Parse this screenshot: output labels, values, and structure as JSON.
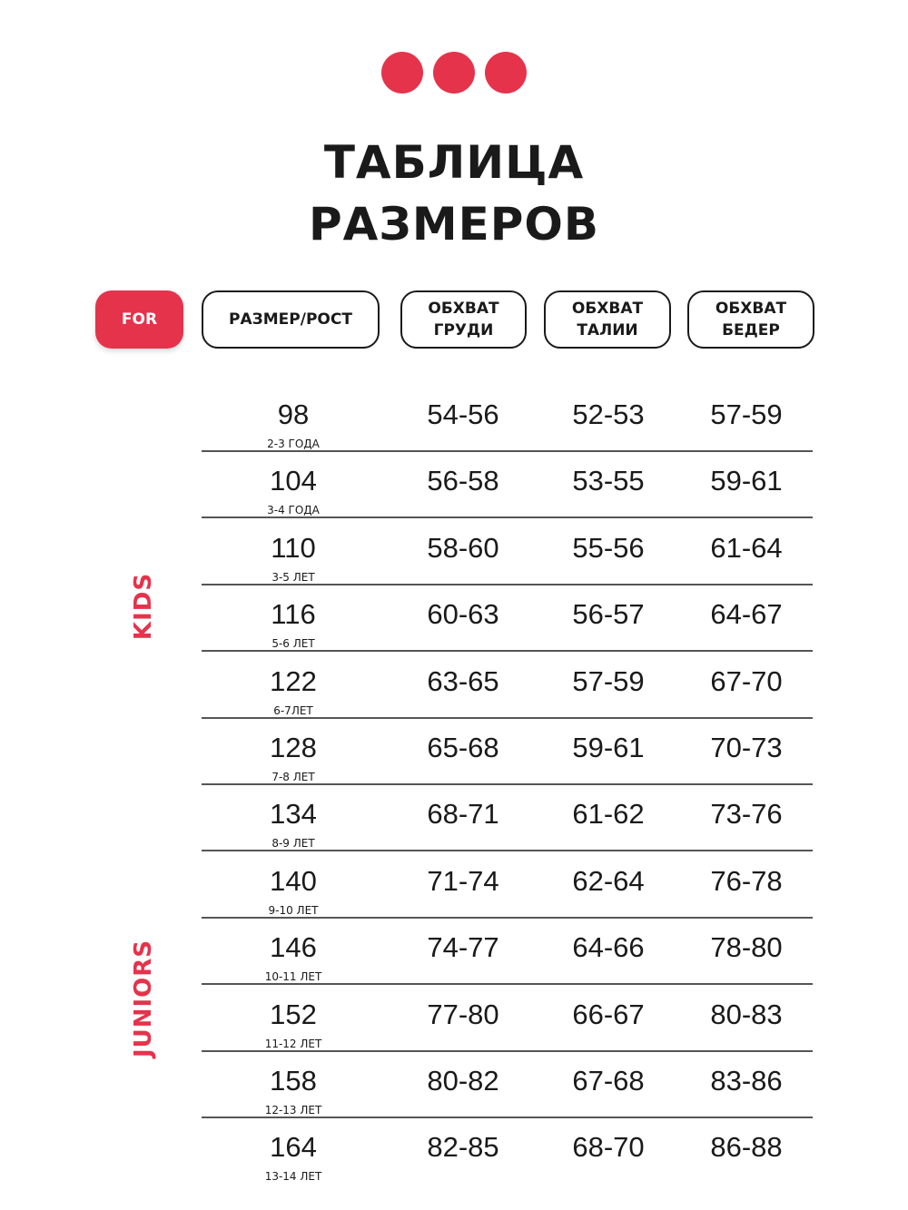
{
  "colors": {
    "accent": "#e5334c",
    "text": "#1a1a1a"
  },
  "title": {
    "line1": "ТАБЛИЦА",
    "line2": "РАЗМЕРОВ"
  },
  "headers": {
    "for": "FOR",
    "size": "РАЗМЕР/РОСТ",
    "chest": "ОБХВАТ ГРУДИ",
    "waist": "ОБХВАТ ТАЛИИ",
    "hips": "ОБХВАТ БЕДЕР"
  },
  "groups": {
    "kids": "KIDS",
    "juniors": "JUNIORS"
  },
  "rows": [
    {
      "size": "98",
      "age": "2-3 ГОДА",
      "chest": "54-56",
      "waist": "52-53",
      "hips": "57-59"
    },
    {
      "size": "104",
      "age": "3-4 ГОДА",
      "chest": "56-58",
      "waist": "53-55",
      "hips": "59-61"
    },
    {
      "size": "110",
      "age": "3-5 ЛЕТ",
      "chest": "58-60",
      "waist": "55-56",
      "hips": "61-64"
    },
    {
      "size": "116",
      "age": "5-6 ЛЕТ",
      "chest": "60-63",
      "waist": "56-57",
      "hips": "64-67"
    },
    {
      "size": "122",
      "age": "6-7ЛЕТ",
      "chest": "63-65",
      "waist": "57-59",
      "hips": "67-70"
    },
    {
      "size": "128",
      "age": "7-8 ЛЕТ",
      "chest": "65-68",
      "waist": "59-61",
      "hips": "70-73"
    },
    {
      "size": "134",
      "age": "8-9 ЛЕТ",
      "chest": "68-71",
      "waist": "61-62",
      "hips": "73-76"
    },
    {
      "size": "140",
      "age": "9-10 ЛЕТ",
      "chest": "71-74",
      "waist": "62-64",
      "hips": "76-78"
    },
    {
      "size": "146",
      "age": "10-11 ЛЕТ",
      "chest": "74-77",
      "waist": "64-66",
      "hips": "78-80"
    },
    {
      "size": "152",
      "age": "11-12 ЛЕТ",
      "chest": "77-80",
      "waist": "66-67",
      "hips": "80-83"
    },
    {
      "size": "158",
      "age": "12-13 ЛЕТ",
      "chest": "80-82",
      "waist": "67-68",
      "hips": "83-86"
    },
    {
      "size": "164",
      "age": "13-14 ЛЕТ",
      "chest": "82-85",
      "waist": "68-70",
      "hips": "86-88"
    }
  ]
}
